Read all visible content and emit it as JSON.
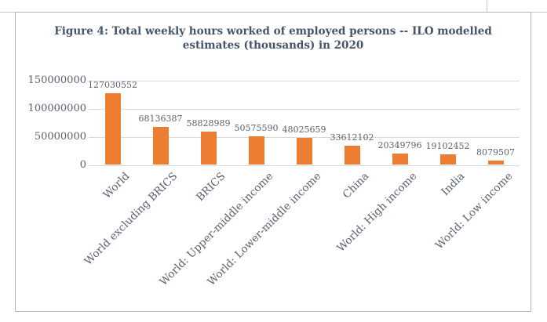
{
  "chart": {
    "title_line1": "Figure 4: Total weekly hours worked of employed persons -- ILO modelled",
    "title_line2": "estimates (thousands) in 2020"
  },
  "chart_data": {
    "type": "bar",
    "title": "Figure 4: Total weekly hours worked of employed persons -- ILO modelled estimates (thousands) in 2020",
    "categories": [
      "World",
      "World excluding BRICS",
      "BRICS",
      "World: Upper-middle income",
      "World: Lower-middle income",
      "China",
      "World: High income",
      "India",
      "World: Low income"
    ],
    "values": [
      127030552,
      68136387,
      58828989,
      50575590,
      48025659,
      33612102,
      20349796,
      19102452,
      8079507
    ],
    "data_labels": [
      "127030552",
      "68136387",
      "58828989",
      "50575590",
      "48025659",
      "33612102",
      "20349796",
      "19102452",
      "8079507"
    ],
    "y_ticks": [
      0,
      50000000,
      100000000,
      150000000
    ],
    "y_tick_labels": [
      "0",
      "50000000",
      "100000000",
      "150000000"
    ],
    "ylim": [
      0,
      150000000
    ],
    "xlabel": "",
    "ylabel": "",
    "legend_position": "none",
    "grid": "horizontal"
  },
  "colors": {
    "bar": "#ED7D31",
    "gridline": "#D9D9D9",
    "labels": "#5A6170",
    "title": "#44546A",
    "frame_border": "#B3B3B3",
    "crop_mark": "#C6C6C6"
  }
}
